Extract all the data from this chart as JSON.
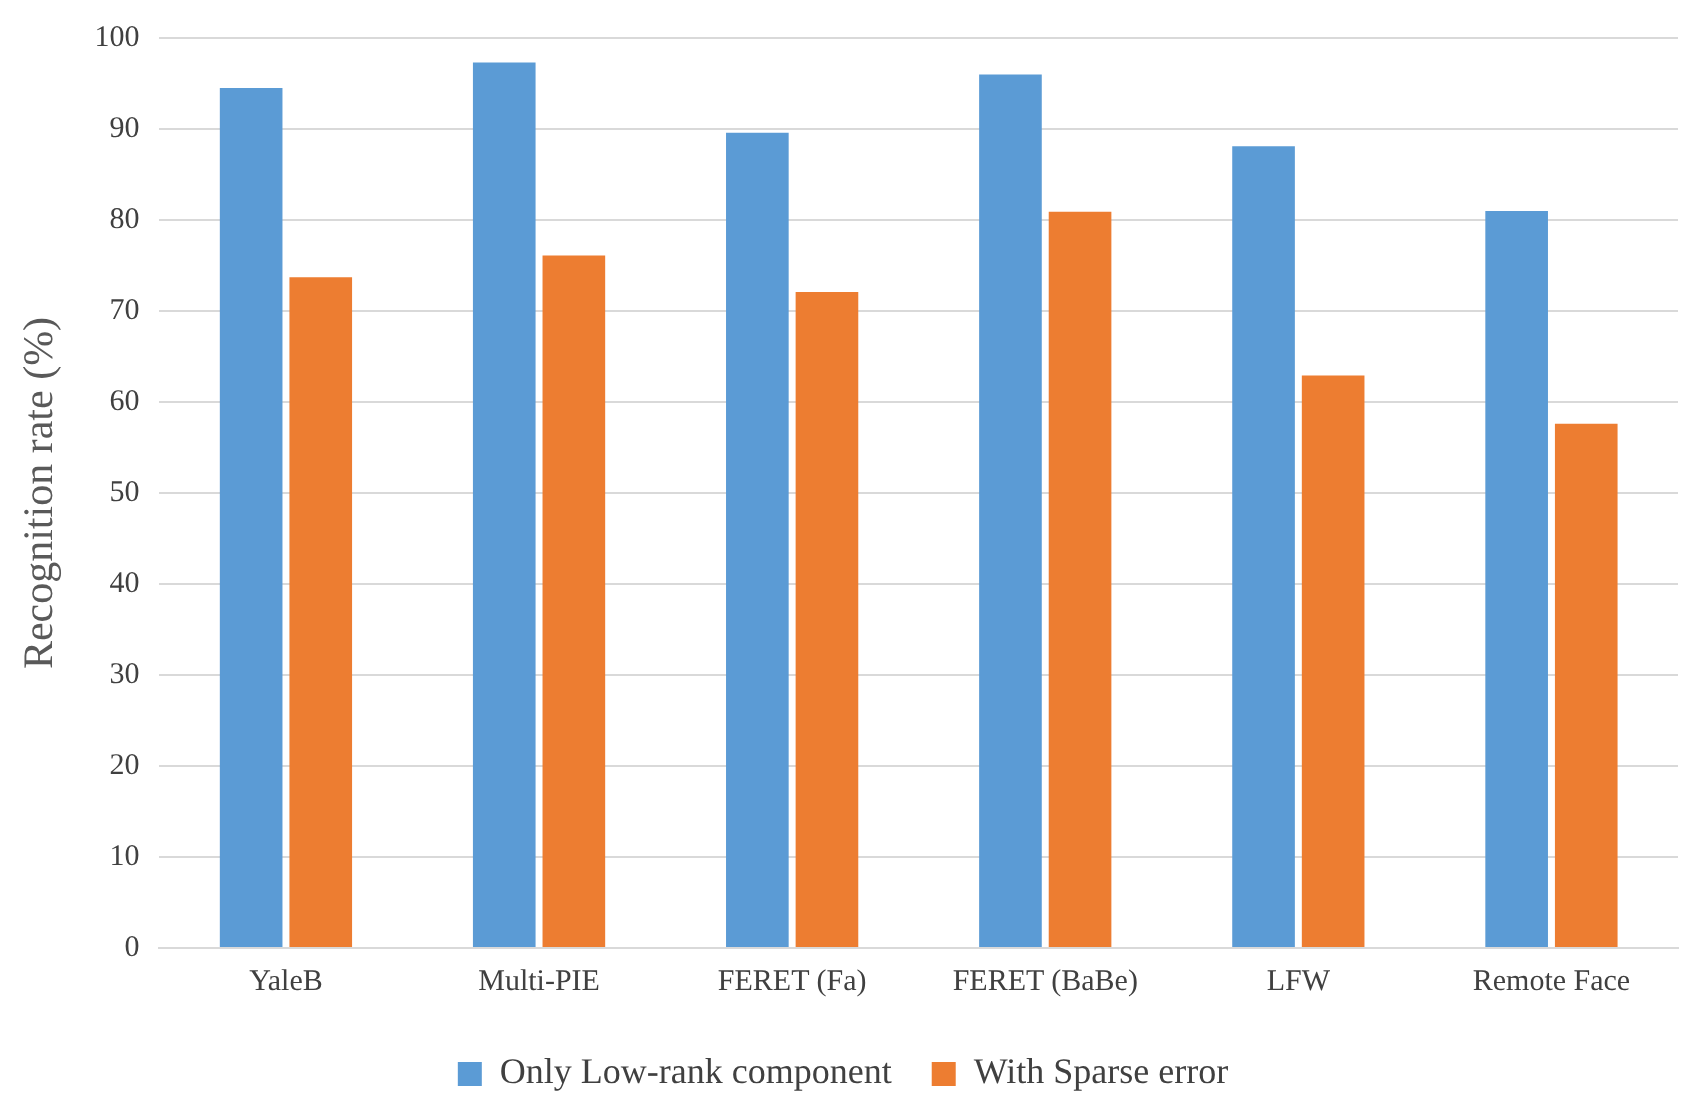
{
  "chart_data": {
    "type": "bar",
    "ylabel": "Recognition rate (%)",
    "categories": [
      "YaleB",
      "Multi-PIE",
      "FERET (Fa)",
      "FERET (BaBe)",
      "LFW",
      "Remote Face"
    ],
    "series": [
      {
        "name": "Only Low-rank component",
        "color": "#5b9bd5",
        "values": [
          94.5,
          97.3,
          89.6,
          96.0,
          88.1,
          81.0
        ]
      },
      {
        "name": "With Sparse error",
        "color": "#ed7d31",
        "values": [
          73.7,
          76.1,
          72.1,
          80.9,
          62.9,
          57.6
        ]
      }
    ],
    "ylim": [
      0,
      100
    ],
    "yticks": [
      0,
      10,
      20,
      30,
      40,
      50,
      60,
      70,
      80,
      90,
      100
    ],
    "grid": "y",
    "legend": "bottom"
  }
}
